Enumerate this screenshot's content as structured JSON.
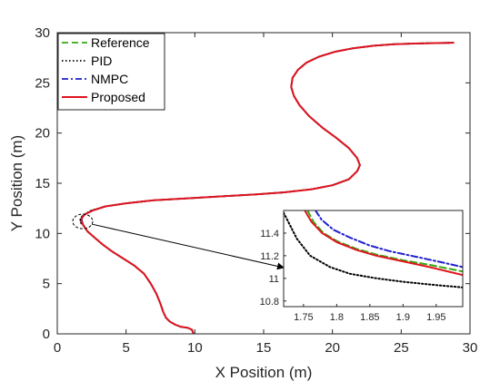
{
  "chart_data": {
    "type": "line",
    "title": "",
    "xlabel": "X Position (m)",
    "ylabel": "Y Position (m)",
    "xlim": [
      0,
      30
    ],
    "ylim": [
      0,
      30
    ],
    "xticks": [
      0,
      5,
      10,
      15,
      20,
      25,
      30
    ],
    "yticks": [
      0,
      5,
      10,
      15,
      20,
      25,
      30
    ],
    "legend_position": "top-left",
    "grid": false,
    "series": [
      {
        "name": "Reference",
        "color": "#33aa11",
        "dash": "dashed",
        "x": [
          9.9,
          9.8,
          9.5,
          9.0,
          8.6,
          8.2,
          7.9,
          7.7,
          7.5,
          7.2,
          6.8,
          6.3,
          5.6,
          4.8,
          4.0,
          3.3,
          2.7,
          2.2,
          1.9,
          1.75,
          1.78,
          2.0,
          2.6,
          3.5,
          5.0,
          7.0,
          9.5,
          12.0,
          14.5,
          16.5,
          18.5,
          20.0,
          21.2,
          21.8,
          22.0,
          21.8,
          21.2,
          20.3,
          19.3,
          18.3,
          17.6,
          17.2,
          17.0,
          17.1,
          17.5,
          18.1,
          19.0,
          20.2,
          21.5,
          23.0,
          24.5,
          26.0,
          27.5,
          28.8
        ],
        "y": [
          0.0,
          0.4,
          0.6,
          0.7,
          0.9,
          1.2,
          1.6,
          2.2,
          3.0,
          4.0,
          5.0,
          6.0,
          6.8,
          7.5,
          8.2,
          8.9,
          9.6,
          10.2,
          10.8,
          11.2,
          11.6,
          11.9,
          12.3,
          12.7,
          13.0,
          13.3,
          13.5,
          13.7,
          13.9,
          14.1,
          14.4,
          14.8,
          15.4,
          16.2,
          16.8,
          17.5,
          18.5,
          19.5,
          20.5,
          21.7,
          22.8,
          23.7,
          24.6,
          25.5,
          26.3,
          27.0,
          27.6,
          28.1,
          28.45,
          28.7,
          28.85,
          28.92,
          28.96,
          29.0
        ]
      },
      {
        "name": "PID",
        "color": "#000000",
        "dash": "dotted",
        "x": [
          9.9,
          9.8,
          9.5,
          9.0,
          8.6,
          8.2,
          7.9,
          7.7,
          7.5,
          7.2,
          6.8,
          6.3,
          5.6,
          4.8,
          4.0,
          3.3,
          2.7,
          2.2,
          1.9,
          1.7,
          1.68,
          1.85,
          2.5,
          3.5,
          5.0,
          7.0,
          9.5,
          12.0,
          14.5,
          16.5,
          18.5,
          20.0,
          21.2,
          21.8,
          22.0,
          21.8,
          21.2,
          20.3,
          19.3,
          18.3,
          17.6,
          17.2,
          17.0,
          17.1,
          17.5,
          18.1,
          19.0,
          20.2,
          21.5,
          23.0,
          24.5,
          26.0,
          27.5,
          28.8
        ],
        "y": [
          0.0,
          0.4,
          0.6,
          0.7,
          0.9,
          1.2,
          1.6,
          2.2,
          3.0,
          4.0,
          5.0,
          6.0,
          6.8,
          7.5,
          8.2,
          8.9,
          9.6,
          10.2,
          10.8,
          11.1,
          11.4,
          11.8,
          12.3,
          12.7,
          13.0,
          13.3,
          13.5,
          13.7,
          13.9,
          14.1,
          14.4,
          14.8,
          15.4,
          16.2,
          16.8,
          17.5,
          18.5,
          19.5,
          20.5,
          21.7,
          22.8,
          23.7,
          24.6,
          25.5,
          26.3,
          27.0,
          27.6,
          28.1,
          28.45,
          28.7,
          28.85,
          28.92,
          28.96,
          29.0
        ]
      },
      {
        "name": "NMPC",
        "color": "#1f1fcc",
        "dash": "dashdot",
        "x": [
          9.9,
          9.8,
          9.5,
          9.0,
          8.6,
          8.2,
          7.9,
          7.7,
          7.5,
          7.2,
          6.8,
          6.3,
          5.6,
          4.8,
          4.0,
          3.3,
          2.7,
          2.2,
          1.9,
          1.78,
          1.82,
          2.05,
          2.6,
          3.5,
          5.0,
          7.0,
          9.5,
          12.0,
          14.5,
          16.5,
          18.5,
          20.0,
          21.2,
          21.8,
          22.0,
          21.8,
          21.2,
          20.3,
          19.3,
          18.3,
          17.6,
          17.2,
          17.0,
          17.1,
          17.5,
          18.1,
          19.0,
          20.2,
          21.5,
          23.0,
          24.5,
          26.0,
          27.5,
          28.8
        ],
        "y": [
          0.0,
          0.4,
          0.6,
          0.7,
          0.9,
          1.2,
          1.6,
          2.2,
          3.0,
          4.0,
          5.0,
          6.0,
          6.8,
          7.5,
          8.2,
          8.9,
          9.6,
          10.2,
          10.8,
          11.3,
          11.6,
          11.95,
          12.3,
          12.7,
          13.0,
          13.3,
          13.5,
          13.7,
          13.9,
          14.1,
          14.4,
          14.8,
          15.4,
          16.2,
          16.8,
          17.5,
          18.5,
          19.5,
          20.5,
          21.7,
          22.8,
          23.7,
          24.6,
          25.5,
          26.3,
          27.0,
          27.6,
          28.1,
          28.45,
          28.7,
          28.85,
          28.92,
          28.96,
          29.0
        ]
      },
      {
        "name": "Proposed",
        "color": "#e0141e",
        "dash": "solid",
        "x": [
          9.9,
          9.8,
          9.5,
          9.0,
          8.6,
          8.2,
          7.9,
          7.7,
          7.5,
          7.2,
          6.8,
          6.3,
          5.6,
          4.8,
          4.0,
          3.3,
          2.7,
          2.2,
          1.9,
          1.76,
          1.79,
          2.0,
          2.6,
          3.5,
          5.0,
          7.0,
          9.5,
          12.0,
          14.5,
          16.5,
          18.5,
          20.0,
          21.2,
          21.8,
          22.0,
          21.8,
          21.2,
          20.3,
          19.3,
          18.3,
          17.6,
          17.2,
          17.0,
          17.1,
          17.5,
          18.1,
          19.0,
          20.2,
          21.5,
          23.0,
          24.5,
          26.0,
          27.5,
          28.8
        ],
        "y": [
          0.0,
          0.4,
          0.6,
          0.7,
          0.9,
          1.2,
          1.6,
          2.2,
          3.0,
          4.0,
          5.0,
          6.0,
          6.8,
          7.5,
          8.2,
          8.9,
          9.6,
          10.2,
          10.8,
          11.2,
          11.55,
          11.9,
          12.3,
          12.7,
          13.0,
          13.3,
          13.5,
          13.7,
          13.9,
          14.1,
          14.4,
          14.8,
          15.4,
          16.2,
          16.8,
          17.5,
          18.5,
          19.5,
          20.5,
          21.7,
          22.8,
          23.7,
          24.6,
          25.5,
          26.3,
          27.0,
          27.6,
          28.1,
          28.45,
          28.7,
          28.85,
          28.92,
          28.96,
          29.0
        ]
      }
    ],
    "inset": {
      "xlim": [
        1.72,
        1.99
      ],
      "ylim": [
        10.75,
        11.6
      ],
      "xticks": [
        1.75,
        1.8,
        1.85,
        1.9,
        1.95
      ],
      "yticks": [
        10.8,
        11,
        11.2,
        11.4
      ],
      "zoom_center": [
        1.85,
        11.2
      ],
      "series": [
        {
          "name": "Reference",
          "x": [
            1.756,
            1.765,
            1.78,
            1.8,
            1.83,
            1.86,
            1.9,
            1.94,
            1.99
          ],
          "y": [
            11.6,
            11.5,
            11.4,
            11.33,
            11.26,
            11.21,
            11.16,
            11.12,
            11.06
          ]
        },
        {
          "name": "PID",
          "x": [
            1.72,
            1.74,
            1.76,
            1.79,
            1.82,
            1.86,
            1.9,
            1.95,
            1.99
          ],
          "y": [
            11.58,
            11.35,
            11.2,
            11.1,
            11.04,
            11.0,
            10.97,
            10.94,
            10.92
          ]
        },
        {
          "name": "NMPC",
          "x": [
            1.768,
            1.777,
            1.795,
            1.82,
            1.85,
            1.88,
            1.92,
            1.96,
            1.99
          ],
          "y": [
            11.6,
            11.52,
            11.43,
            11.36,
            11.29,
            11.24,
            11.19,
            11.14,
            11.1
          ]
        },
        {
          "name": "Proposed",
          "x": [
            1.752,
            1.762,
            1.778,
            1.8,
            1.83,
            1.86,
            1.9,
            1.94,
            1.99
          ],
          "y": [
            11.6,
            11.5,
            11.4,
            11.32,
            11.25,
            11.2,
            11.15,
            11.1,
            11.03
          ]
        }
      ]
    }
  }
}
